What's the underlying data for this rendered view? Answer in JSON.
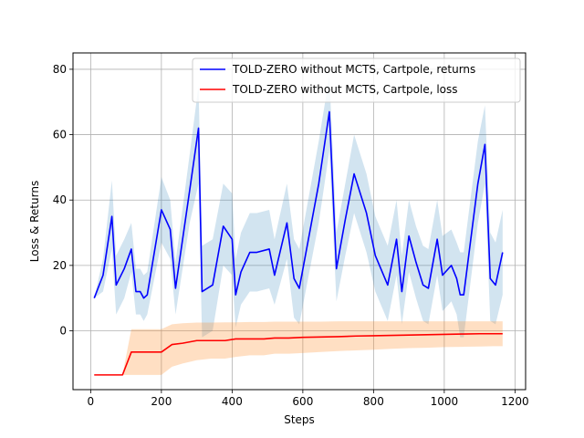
{
  "chart_data": {
    "type": "line",
    "title": "",
    "xlabel": "Steps",
    "ylabel": "Loss & Returns",
    "xlim": [
      -50,
      1230
    ],
    "ylim": [
      -18,
      85
    ],
    "xticks": [
      0,
      200,
      400,
      600,
      800,
      1000,
      1200
    ],
    "yticks": [
      0,
      20,
      40,
      60,
      80
    ],
    "grid": true,
    "legend_position": "upper-right",
    "series": [
      {
        "name": "TOLD-ZERO without MCTS, Cartpole, returns",
        "color": "#0000ff",
        "band_color": "#1f77b4",
        "band_opacity": 0.2,
        "x": [
          10,
          35,
          60,
          72,
          95,
          115,
          128,
          140,
          150,
          160,
          200,
          225,
          240,
          280,
          305,
          315,
          345,
          375,
          400,
          410,
          425,
          450,
          470,
          505,
          520,
          555,
          575,
          590,
          645,
          675,
          695,
          720,
          745,
          780,
          805,
          840,
          865,
          880,
          900,
          920,
          940,
          955,
          980,
          995,
          1020,
          1035,
          1045,
          1055,
          1095,
          1115,
          1130,
          1145,
          1165
        ],
        "y": [
          10,
          17,
          35,
          14,
          19,
          25,
          12,
          12,
          10,
          11,
          37,
          31,
          13,
          43,
          62,
          12,
          14,
          32,
          28,
          11,
          18,
          24,
          24,
          25,
          17,
          33,
          16,
          13,
          45,
          67,
          19,
          34,
          48,
          36,
          23,
          14,
          28,
          12,
          29,
          21,
          14,
          13,
          28,
          17,
          20,
          16,
          11,
          11,
          45,
          57,
          16,
          14,
          24
        ],
        "lower": [
          10,
          12,
          25,
          5,
          10,
          18,
          5,
          5,
          3,
          5,
          27,
          22,
          5,
          33,
          45,
          -2,
          0,
          20,
          17,
          1,
          8,
          12,
          12,
          13,
          8,
          22,
          4,
          2,
          33,
          55,
          9,
          23,
          36,
          24,
          12,
          3,
          17,
          2,
          18,
          10,
          3,
          2,
          17,
          6,
          9,
          5,
          -2,
          -2,
          33,
          45,
          3,
          2,
          11
        ],
        "upper": [
          10,
          22,
          46,
          23,
          28,
          33,
          19,
          19,
          17,
          18,
          47,
          40,
          21,
          54,
          75,
          26,
          28,
          45,
          42,
          22,
          30,
          36,
          36,
          37,
          28,
          45,
          28,
          25,
          58,
          78,
          30,
          45,
          60,
          48,
          35,
          26,
          40,
          23,
          40,
          32,
          26,
          25,
          40,
          29,
          31,
          27,
          24,
          24,
          58,
          69,
          30,
          27,
          37
        ]
      },
      {
        "name": "TOLD-ZERO without MCTS, Cartpole, loss",
        "color": "#ff0000",
        "band_color": "#ff7f0e",
        "band_opacity": 0.25,
        "x": [
          10,
          50,
          90,
          115,
          150,
          200,
          230,
          260,
          300,
          340,
          380,
          410,
          450,
          490,
          520,
          560,
          600,
          650,
          700,
          750,
          800,
          850,
          900,
          950,
          1000,
          1050,
          1100,
          1140,
          1165
        ],
        "y": [
          -13.5,
          -13.5,
          -13.5,
          -6.5,
          -6.5,
          -6.5,
          -4.2,
          -3.8,
          -3.0,
          -3.0,
          -3.0,
          -2.5,
          -2.5,
          -2.5,
          -2.2,
          -2.2,
          -2.0,
          -1.9,
          -1.8,
          -1.6,
          -1.5,
          -1.4,
          -1.3,
          -1.2,
          -1.1,
          -1.0,
          -0.9,
          -0.9,
          -0.9
        ],
        "lower": [
          -13.5,
          -13.5,
          -13.5,
          -13.5,
          -13.5,
          -13.5,
          -11,
          -10,
          -9,
          -8.5,
          -8.5,
          -8,
          -7.5,
          -7.5,
          -7,
          -7,
          -6.8,
          -6.5,
          -6.2,
          -6,
          -5.8,
          -5.5,
          -5.3,
          -5.2,
          -5,
          -4.9,
          -4.8,
          -4.7,
          -4.7
        ],
        "upper": [
          -13.5,
          -13.5,
          -13.5,
          0.5,
          0.5,
          0.5,
          2,
          2.3,
          2.5,
          2.5,
          2.6,
          2.6,
          2.7,
          2.7,
          2.8,
          2.8,
          2.8,
          2.8,
          2.9,
          2.9,
          2.9,
          2.9,
          2.9,
          2.9,
          2.9,
          2.9,
          2.9,
          2.9,
          2.9
        ]
      }
    ]
  }
}
